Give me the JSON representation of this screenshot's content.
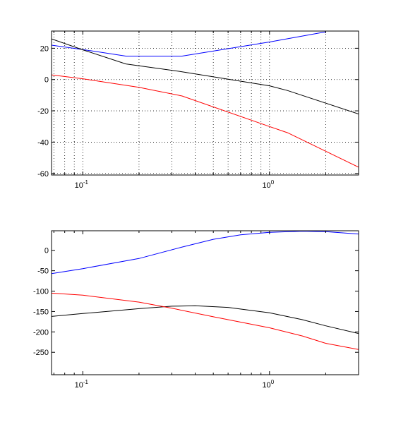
{
  "chart_data": [
    {
      "type": "line",
      "xscale": "log",
      "xlim": [
        0.068,
        3.0
      ],
      "ylim": [
        -61,
        31
      ],
      "grid": true,
      "x_ticks": [
        {
          "base": "10",
          "exp": "-1",
          "value": 0.1
        },
        {
          "base": "10",
          "exp": "0",
          "value": 1.0
        }
      ],
      "y_ticks": [
        {
          "label": "20",
          "value": 20
        },
        {
          "label": "0",
          "value": 0
        },
        {
          "label": "-20",
          "value": -20
        },
        {
          "label": "-40",
          "value": -40
        },
        {
          "label": "-60",
          "value": -60
        }
      ],
      "series": [
        {
          "color": "#0000ff",
          "points": [
            [
              0.068,
              22
            ],
            [
              0.1,
              19.2
            ],
            [
              0.17,
              15
            ],
            [
              0.34,
              15
            ],
            [
              1.0,
              24
            ],
            [
              2.0,
              30.5
            ]
          ]
        },
        {
          "color": "#000000",
          "points": [
            [
              0.068,
              26
            ],
            [
              0.1,
              19
            ],
            [
              0.17,
              10
            ],
            [
              0.34,
              5
            ],
            [
              1.0,
              -4
            ],
            [
              1.25,
              -7
            ],
            [
              3.0,
              -22
            ]
          ]
        },
        {
          "color": "#ff0000",
          "points": [
            [
              0.068,
              3
            ],
            [
              0.1,
              0.5
            ],
            [
              0.2,
              -5
            ],
            [
              0.34,
              -10.5
            ],
            [
              1.0,
              -30
            ],
            [
              1.25,
              -34
            ],
            [
              3.0,
              -56
            ]
          ]
        }
      ]
    },
    {
      "type": "line",
      "xscale": "log",
      "xlim": [
        0.068,
        3.0
      ],
      "ylim": [
        -305,
        48
      ],
      "grid": false,
      "x_ticks": [
        {
          "base": "10",
          "exp": "-1",
          "value": 0.1
        },
        {
          "base": "10",
          "exp": "0",
          "value": 1.0
        }
      ],
      "y_ticks": [
        {
          "label": "0",
          "value": 0
        },
        {
          "label": "-50",
          "value": -50
        },
        {
          "label": "-100",
          "value": -100
        },
        {
          "label": "-150",
          "value": -150
        },
        {
          "label": "-200",
          "value": -200
        },
        {
          "label": "-250",
          "value": -250
        }
      ],
      "series": [
        {
          "color": "#0000ff",
          "points": [
            [
              0.068,
              -57
            ],
            [
              0.1,
              -45
            ],
            [
              0.2,
              -20
            ],
            [
              0.34,
              8
            ],
            [
              0.5,
              27
            ],
            [
              0.7,
              38
            ],
            [
              1.0,
              44
            ],
            [
              1.5,
              47
            ],
            [
              2.0,
              46
            ],
            [
              3.0,
              40
            ]
          ]
        },
        {
          "color": "#000000",
          "points": [
            [
              0.068,
              -162
            ],
            [
              0.1,
              -155
            ],
            [
              0.2,
              -143
            ],
            [
              0.3,
              -137
            ],
            [
              0.4,
              -136
            ],
            [
              0.6,
              -140
            ],
            [
              1.0,
              -153
            ],
            [
              1.5,
              -170
            ],
            [
              2.0,
              -185
            ],
            [
              3.0,
              -204
            ]
          ]
        },
        {
          "color": "#ff0000",
          "points": [
            [
              0.068,
              -105
            ],
            [
              0.1,
              -110
            ],
            [
              0.2,
              -127
            ],
            [
              0.3,
              -142
            ],
            [
              0.5,
              -163
            ],
            [
              1.0,
              -190
            ],
            [
              1.5,
              -210
            ],
            [
              2.0,
              -228
            ],
            [
              3.0,
              -243
            ]
          ]
        }
      ]
    }
  ]
}
